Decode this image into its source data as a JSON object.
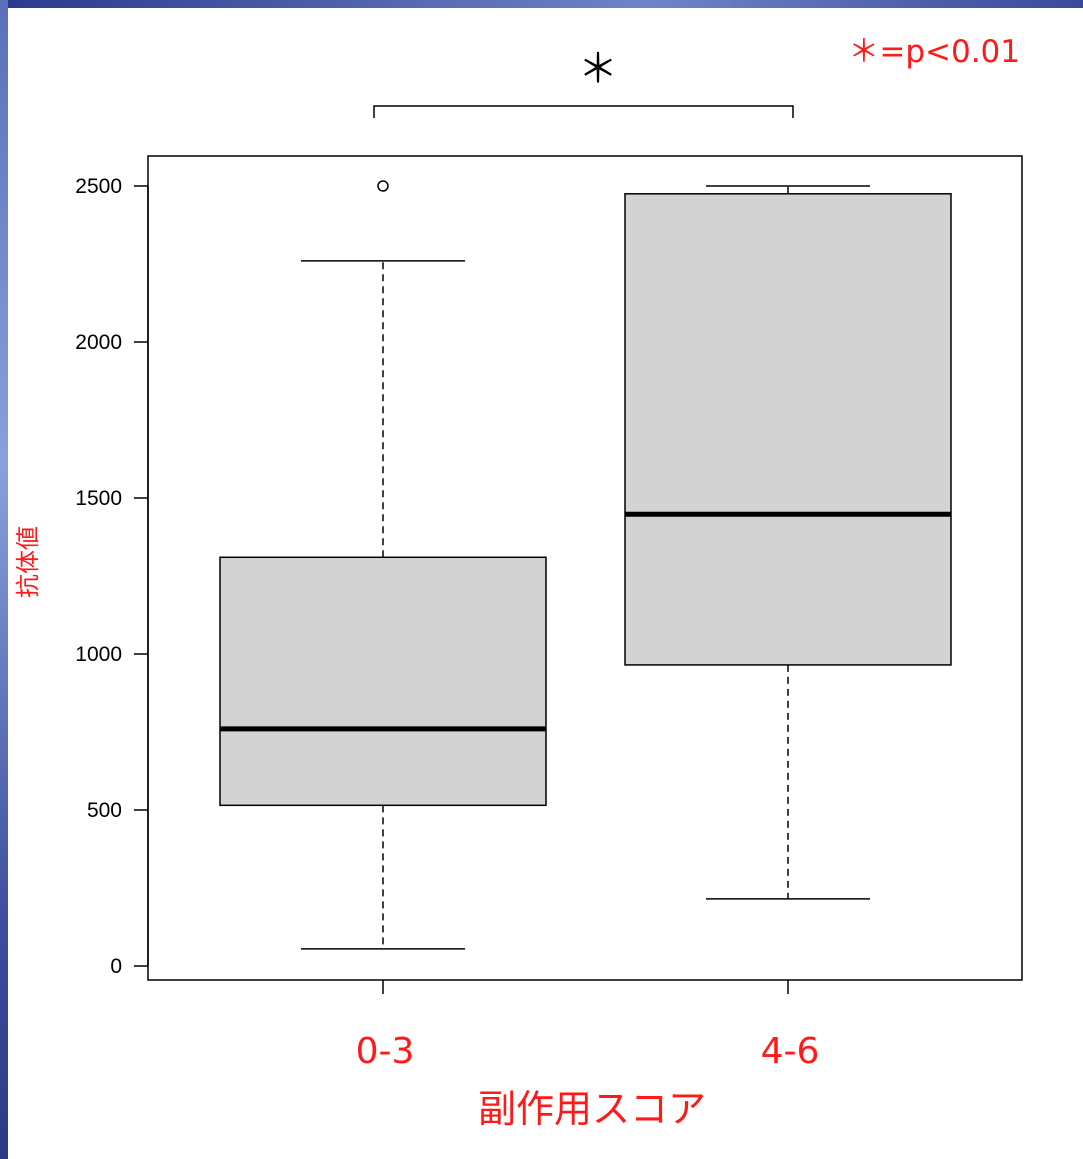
{
  "chart_data": {
    "type": "boxplot",
    "xlabel": "副作用スコア",
    "ylabel": "抗体値",
    "categories": [
      "0-3",
      "4-6"
    ],
    "ylim": [
      -50,
      2600
    ],
    "yticks": [
      0,
      500,
      1000,
      1500,
      2000,
      2500
    ],
    "grid": false,
    "series": [
      {
        "category": "0-3",
        "min": 55,
        "q1": 515,
        "median": 760,
        "q3": 1310,
        "max": 2260,
        "outliers": [
          2500
        ]
      },
      {
        "category": "4-6",
        "min": 215,
        "q1": 965,
        "median": 1448,
        "q3": 2475,
        "max": 2500,
        "outliers": []
      }
    ],
    "significance": {
      "marker": "＊",
      "between": [
        "0-3",
        "4-6"
      ],
      "legend": "＊=p<0.01"
    },
    "colors": {
      "box_fill": "#d3d3d3",
      "annotation": "#ff1a1a",
      "outline": "#000000"
    }
  }
}
